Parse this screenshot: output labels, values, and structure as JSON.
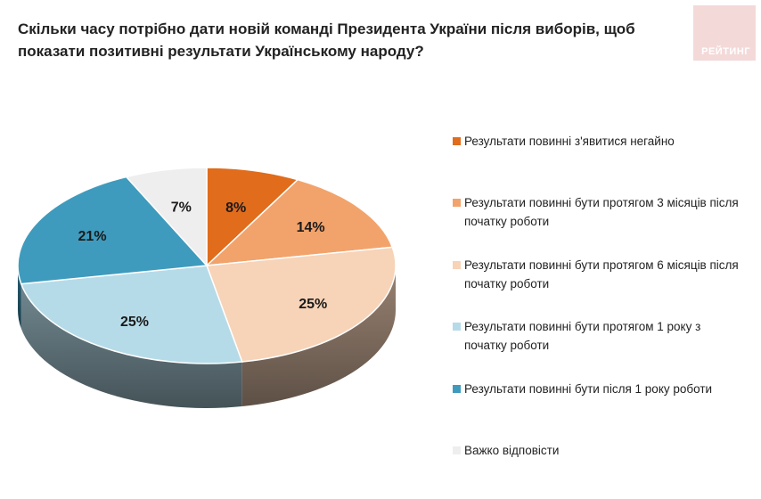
{
  "title": "Скільки часу потрібно дати новій команді Президента України після виборів, щоб показати позитивні результати Українському народу?",
  "logo": {
    "text": "РЕЙТИНГ"
  },
  "chart_data": {
    "type": "pie",
    "style": "3d",
    "legend_position": "right",
    "slices": [
      {
        "label": "Результати повинні з'явитися негайно",
        "value": 8,
        "value_label": "8%",
        "color": "#e06c1c"
      },
      {
        "label": "Результати повинні бути протягом 3 місяців після початку роботи",
        "value": 14,
        "value_label": "14%",
        "color": "#f2a36b"
      },
      {
        "label": "Результати повинні бути протягом 6 місяців після початку роботи",
        "value": 25,
        "value_label": "25%",
        "color": "#f7d3b8"
      },
      {
        "label": "Результати повинні бути протягом 1 року з початку роботи",
        "value": 25,
        "value_label": "25%",
        "color": "#b6dbe8"
      },
      {
        "label": "Результати повинні бути після 1 року роботи",
        "value": 21,
        "value_label": "21%",
        "color": "#3f9bbd"
      },
      {
        "label": "Важко відповісти",
        "value": 7,
        "value_label": "7%",
        "color": "#eeeeee"
      }
    ]
  }
}
